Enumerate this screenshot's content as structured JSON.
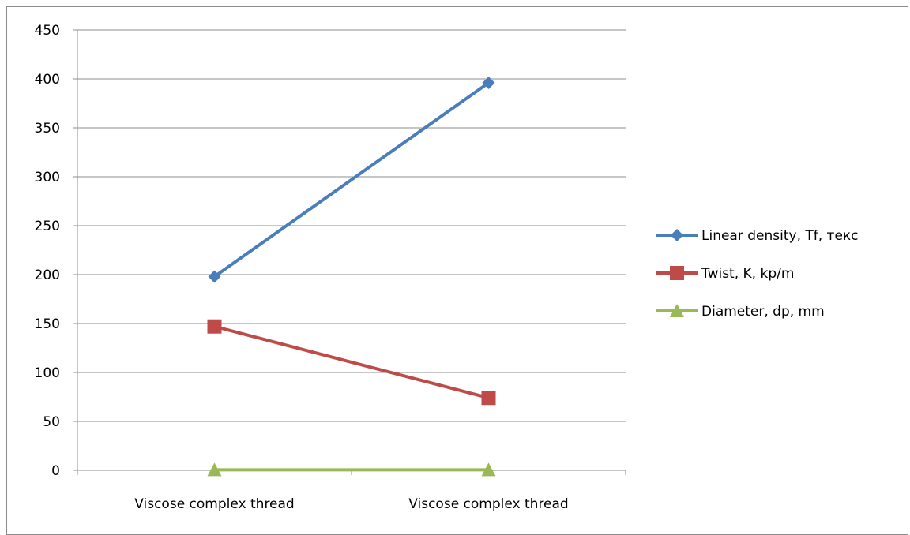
{
  "chart_data": {
    "type": "line",
    "title": "",
    "xlabel": "",
    "ylabel": "",
    "categories": [
      "Viscose complex thread",
      "Viscose complex thread"
    ],
    "ylim": [
      0,
      450
    ],
    "yticks": [
      0,
      50,
      100,
      150,
      200,
      250,
      300,
      350,
      400,
      450
    ],
    "grid": true,
    "legend_position": "right",
    "series": [
      {
        "name": "Linear density, Tf, текс",
        "values": [
          198,
          396
        ],
        "color": "#4a7ebb",
        "marker": "diamond"
      },
      {
        "name": "Twist, K, kp/m",
        "values": [
          147,
          74
        ],
        "color": "#be4b48",
        "marker": "square"
      },
      {
        "name": "Diameter, dp, mm",
        "values": [
          0.5,
          0.5
        ],
        "color": "#98b954",
        "marker": "triangle"
      }
    ]
  }
}
